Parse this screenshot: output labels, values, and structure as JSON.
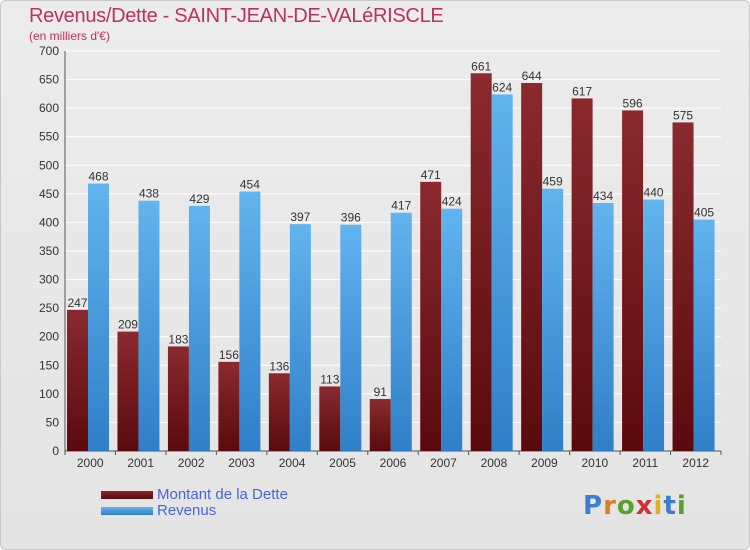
{
  "header": {
    "title": "Revenus/Dette - SAINT-JEAN-DE-VALéRISCLE",
    "subtitle": "(en milliers d'€)"
  },
  "colors": {
    "debt": "#7a1a1f",
    "debt_dark": "#5a0a0e",
    "revenue": "#5aaeea",
    "revenue_dark": "#2f7fc8",
    "grid": "#ffffff",
    "title": "#c03058"
  },
  "chart_data": {
    "type": "bar",
    "title": "Revenus/Dette - SAINT-JEAN-DE-VALéRISCLE",
    "subtitle": "(en milliers d'€)",
    "categories": [
      "2000",
      "2001",
      "2002",
      "2003",
      "2004",
      "2005",
      "2006",
      "2007",
      "2008",
      "2009",
      "2010",
      "2011",
      "2012"
    ],
    "series": [
      {
        "name": "Montant de la Dette",
        "values": [
          247,
          209,
          183,
          156,
          136,
          113,
          91,
          471,
          661,
          644,
          617,
          596,
          575
        ]
      },
      {
        "name": "Revenus",
        "values": [
          468,
          438,
          429,
          454,
          397,
          396,
          417,
          424,
          624,
          459,
          434,
          440,
          405
        ]
      }
    ],
    "ylim": [
      0,
      700
    ],
    "yticks": [
      0,
      50,
      100,
      150,
      200,
      250,
      300,
      350,
      400,
      450,
      500,
      550,
      600,
      650,
      700
    ],
    "grid": true,
    "legend_position": "bottom-left"
  },
  "legend": {
    "items": [
      {
        "label": "Montant de la Dette"
      },
      {
        "label": "Revenus"
      }
    ]
  },
  "logo": {
    "letters": [
      "P",
      "r",
      "o",
      "x",
      "i",
      "t",
      "i"
    ],
    "colors": [
      "#3a7fc8",
      "#e07a20",
      "#5aa02c",
      "#d03030",
      "#e0b020",
      "#3a7fc8",
      "#5aa02c"
    ]
  }
}
